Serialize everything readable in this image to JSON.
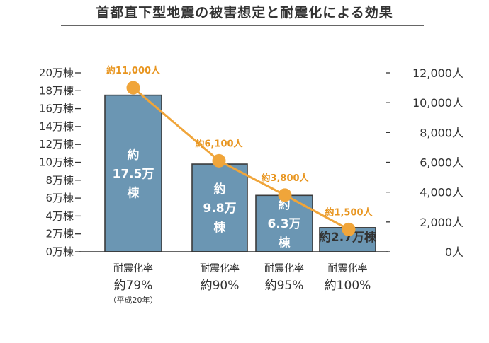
{
  "chart_data": {
    "type": "bar",
    "title": "首都直下型地震の被害想定と耐震化による効果",
    "colors": {
      "bar": "#6b96b3",
      "line": "#f0a53a",
      "point": "#f0a53a",
      "axis": "#333333"
    },
    "left_axis": {
      "ticks": [
        "0万棟",
        "2万棟",
        "4万棟",
        "6万棟",
        "8万棟",
        "10万棟",
        "12万棟",
        "14万棟",
        "16万棟",
        "18万棟",
        "20万棟"
      ],
      "ylim": [
        0,
        20
      ]
    },
    "right_axis": {
      "ticks": [
        "0人",
        "2,000人",
        "4,000人",
        "6,000人",
        "8,000人",
        "10,000人",
        "12,000人"
      ],
      "ylim": [
        0,
        12000
      ]
    },
    "categories": [
      {
        "name": "耐震化率",
        "value": "約79%",
        "note": "（平成20年）"
      },
      {
        "name": "耐震化率",
        "value": "約90%",
        "note": ""
      },
      {
        "name": "耐震化率",
        "value": "約95%",
        "note": ""
      },
      {
        "name": "耐震化率",
        "value": "約100%",
        "note": ""
      }
    ],
    "series": [
      {
        "type": "bar",
        "axis": "left",
        "values": [
          17.5,
          9.8,
          6.3,
          2.7
        ],
        "labels": [
          [
            "約",
            "17.5万",
            "棟"
          ],
          [
            "約",
            "9.8万",
            "棟"
          ],
          [
            "約",
            "6.3万",
            "棟"
          ],
          [
            "約2.7万棟"
          ]
        ]
      },
      {
        "type": "line",
        "axis": "right",
        "values": [
          11000,
          6100,
          3800,
          1500
        ],
        "labels": [
          "約11,000人",
          "約6,100人",
          "約3,800人",
          "約1,500人"
        ]
      }
    ]
  }
}
